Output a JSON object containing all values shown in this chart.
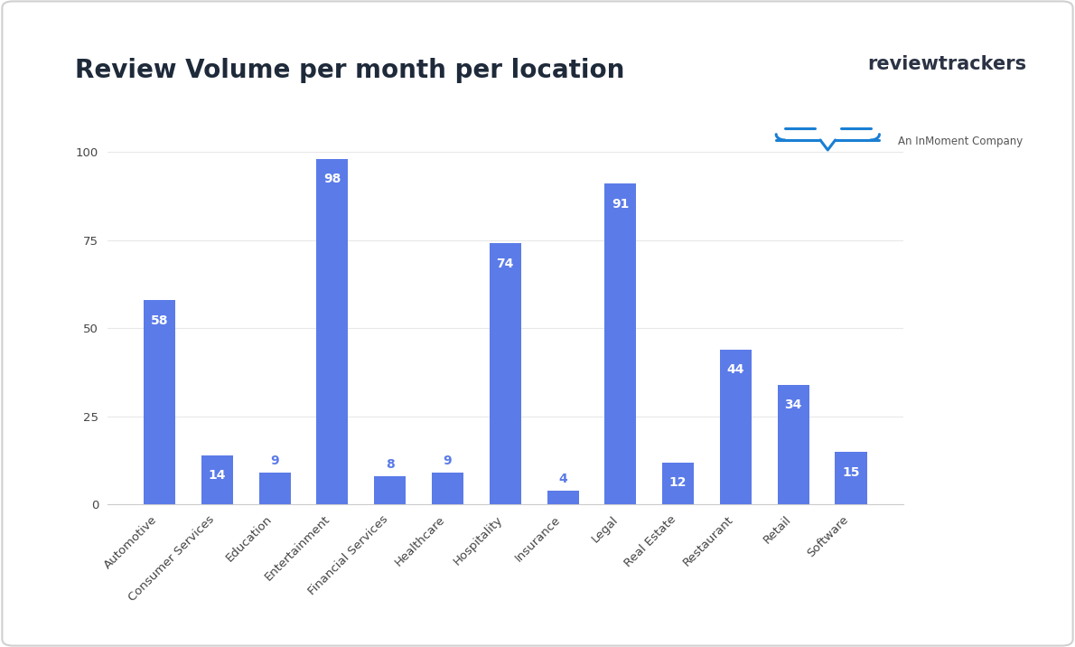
{
  "title": "Review Volume per month per location",
  "categories": [
    "Automotive",
    "Consumer Services",
    "Education",
    "Entertainment",
    "Financial Services",
    "Healthcare",
    "Hospitality",
    "Insurance",
    "Legal",
    "Real Estate",
    "Restaurant",
    "Retail",
    "Software"
  ],
  "values": [
    58,
    14,
    9,
    98,
    8,
    9,
    74,
    4,
    91,
    12,
    44,
    34,
    15
  ],
  "bar_color": "#5b7be8",
  "label_color_inside": "#ffffff",
  "label_color_outside": "#5b7be8",
  "inside_threshold": 12,
  "ylim": [
    0,
    110
  ],
  "yticks": [
    0,
    25,
    50,
    75,
    100
  ],
  "background_color": "#ffffff",
  "title_color": "#1e2a3a",
  "title_fontsize": 20,
  "tick_label_fontsize": 9.5,
  "bar_label_fontsize": 10,
  "logo_text_main": "reviewtrackers",
  "logo_text_sub": "An InMoment Company",
  "logo_main_color": "#2b3344",
  "logo_sub_color": "#555555",
  "logo_blue_color": "#1a7fd4",
  "border_color": "#d0d0d0",
  "grid_color": "#e8e8e8",
  "spine_color": "#cccccc"
}
